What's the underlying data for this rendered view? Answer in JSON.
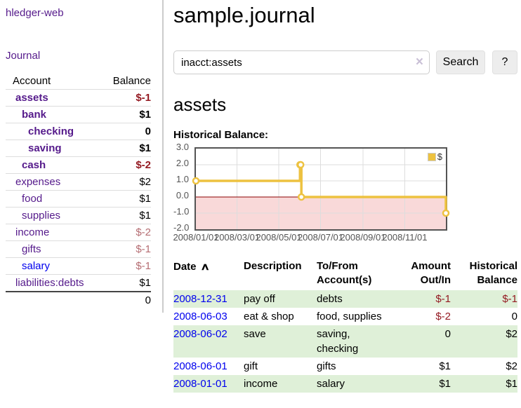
{
  "app": {
    "title": "hledger-web",
    "nav_journal": "Journal"
  },
  "colors": {
    "link_purple": "#551a8b",
    "link_blue": "#0000ee",
    "negative_strong": "#941a22",
    "negative_soft": "#b56d72",
    "row_stripe_green": "#dff0d8",
    "chart_series": "#edc240",
    "chart_grid": "#dddddd",
    "chart_border": "#545454",
    "chart_negative_region": "#f9d9d9",
    "chart_zero_line": "#8b0000"
  },
  "sidebar": {
    "col_account": "Account",
    "col_balance": "Balance",
    "accounts": [
      {
        "name": "assets",
        "indent": 0,
        "bold": true,
        "balance": "$-1",
        "balance_style": "neg-strong",
        "link_color": "purple"
      },
      {
        "name": "bank",
        "indent": 1,
        "bold": true,
        "balance": "$1",
        "balance_style": "pos",
        "link_color": "purple"
      },
      {
        "name": "checking",
        "indent": 2,
        "bold": true,
        "balance": "0",
        "balance_style": "pos",
        "link_color": "purple"
      },
      {
        "name": "saving",
        "indent": 2,
        "bold": true,
        "balance": "$1",
        "balance_style": "pos",
        "link_color": "purple"
      },
      {
        "name": "cash",
        "indent": 1,
        "bold": true,
        "balance": "$-2",
        "balance_style": "neg-strong",
        "link_color": "purple"
      },
      {
        "name": "expenses",
        "indent": 0,
        "bold": false,
        "balance": "$2",
        "balance_style": "pos",
        "link_color": "purple"
      },
      {
        "name": "food",
        "indent": 1,
        "bold": false,
        "balance": "$1",
        "balance_style": "pos",
        "link_color": "purple"
      },
      {
        "name": "supplies",
        "indent": 1,
        "bold": false,
        "balance": "$1",
        "balance_style": "pos",
        "link_color": "purple"
      },
      {
        "name": "income",
        "indent": 0,
        "bold": false,
        "balance": "$-2",
        "balance_style": "neg-soft",
        "link_color": "purple"
      },
      {
        "name": "gifts",
        "indent": 1,
        "bold": false,
        "balance": "$-1",
        "balance_style": "neg-soft",
        "link_color": "purple"
      },
      {
        "name": "salary",
        "indent": 1,
        "bold": false,
        "balance": "$-1",
        "balance_style": "neg-soft",
        "link_color": "blue"
      },
      {
        "name": "liabilities:debts",
        "indent": 0,
        "bold": false,
        "balance": "$1",
        "balance_style": "pos",
        "link_color": "purple"
      }
    ],
    "total": "0"
  },
  "header": {
    "title": "sample.journal"
  },
  "search": {
    "query": "inacct:assets",
    "clear_icon": "×",
    "button_label": "Search",
    "help_label": "?"
  },
  "main": {
    "account_heading": "assets"
  },
  "chart_data": {
    "type": "line",
    "step": true,
    "title": "Historical Balance:",
    "series": [
      {
        "name": "$",
        "points": [
          {
            "date": "2008-01-01",
            "day": 0,
            "value": 1
          },
          {
            "date": "2008-06-01",
            "day": 152,
            "value": 2
          },
          {
            "date": "2008-06-02",
            "day": 153,
            "value": 2
          },
          {
            "date": "2008-06-03",
            "day": 154,
            "value": 0
          },
          {
            "date": "2008-12-31",
            "day": 365,
            "value": -1
          }
        ]
      }
    ],
    "x_ticks": [
      {
        "label": "2008/01/01",
        "day": 0
      },
      {
        "label": "2008/03/01",
        "day": 60
      },
      {
        "label": "2008/05/01",
        "day": 121
      },
      {
        "label": "2008/07/01",
        "day": 182
      },
      {
        "label": "2008/09/01",
        "day": 244
      },
      {
        "label": "2008/11/01",
        "day": 305
      }
    ],
    "x_range_days": [
      0,
      365
    ],
    "y_ticks": [
      "3.0",
      "2.0",
      "1.0",
      "0.0",
      "-1.0",
      "-2.0"
    ],
    "ylim": [
      -2,
      3
    ],
    "legend": {
      "label": "$",
      "position": "top-right"
    },
    "grid": true,
    "negative_region_shaded": true
  },
  "register": {
    "columns": [
      "Date",
      "Description",
      "To/From Account(s)",
      "Amount Out/In",
      "Historical Balance"
    ],
    "sort_icon": "∧",
    "sort_column": "Date",
    "rows": [
      {
        "date": "2008-12-31",
        "description": "pay off",
        "accounts": "debts",
        "amount": "$-1",
        "amount_negative": true,
        "balance": "$-1",
        "balance_negative": true
      },
      {
        "date": "2008-06-03",
        "description": "eat & shop",
        "accounts": "food, supplies",
        "amount": "$-2",
        "amount_negative": true,
        "balance": "0",
        "balance_negative": false
      },
      {
        "date": "2008-06-02",
        "description": "save",
        "accounts": "saving, checking",
        "amount": "0",
        "amount_negative": false,
        "balance": "$2",
        "balance_negative": false
      },
      {
        "date": "2008-06-01",
        "description": "gift",
        "accounts": "gifts",
        "amount": "$1",
        "amount_negative": false,
        "balance": "$2",
        "balance_negative": false
      },
      {
        "date": "2008-01-01",
        "description": "income",
        "accounts": "salary",
        "amount": "$1",
        "amount_negative": false,
        "balance": "$1",
        "balance_negative": false
      }
    ]
  }
}
